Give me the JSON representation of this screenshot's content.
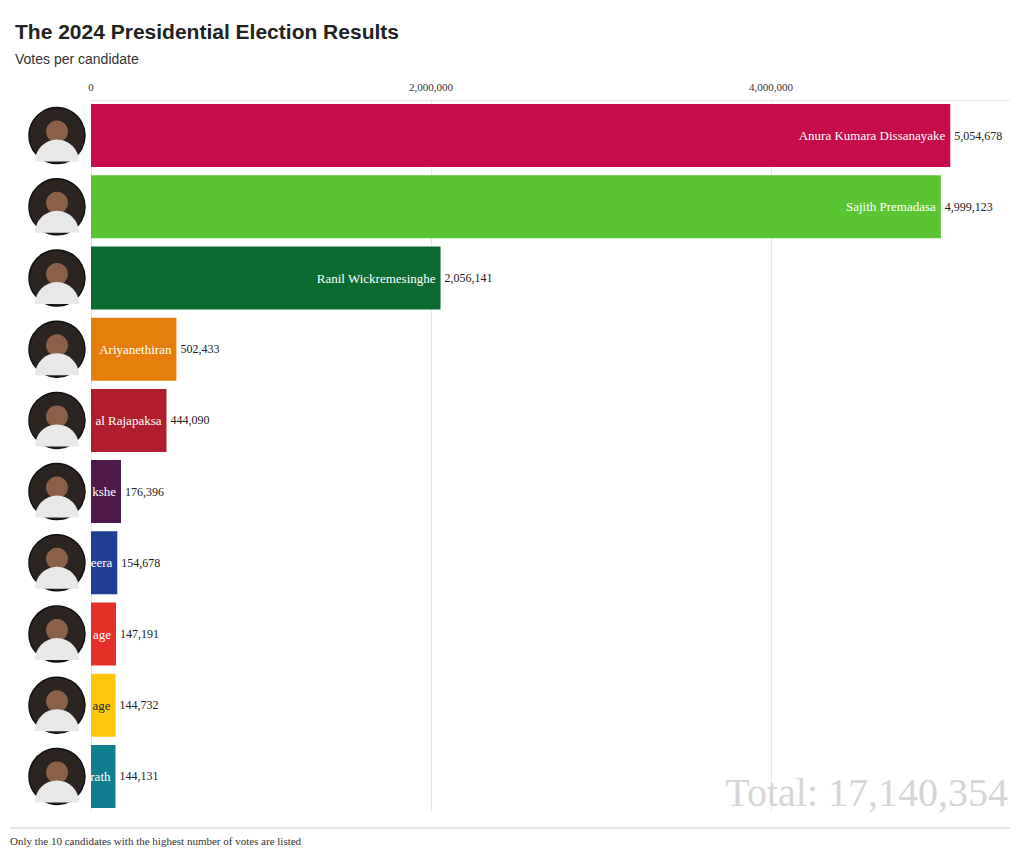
{
  "chart_data": {
    "type": "bar",
    "title": "The 2024 Presidential Election Results",
    "subtitle": "Votes per candidate",
    "orientation": "horizontal",
    "categories": [
      "Anura Kumara Dissanayake",
      "Sajith Premadasa",
      "Ranil Wickremesinghe",
      "Ariyanethiran",
      "al Rajapaksa",
      "kshe",
      "eera",
      "age",
      "age",
      "rath"
    ],
    "values": [
      5054678,
      4999123,
      2056141,
      502433,
      444090,
      176396,
      154678,
      147191,
      144732,
      144131
    ],
    "value_labels": [
      "5,054,678",
      "4,999,123",
      "2,056,141",
      "502,433",
      "444,090",
      "176,396",
      "154,678",
      "147,191",
      "144,732",
      "144,131"
    ],
    "colors": [
      "#c70c4b",
      "#5bc432",
      "#0b6b30",
      "#e57e0c",
      "#b01e2e",
      "#4d1a4b",
      "#1f3f94",
      "#e5302a",
      "#fcc70c",
      "#117e8f"
    ],
    "xlim": [
      0,
      5400000
    ],
    "xticks": [
      0,
      {
        "value": 2000000,
        "label": "2,000,000"
      },
      {
        "value": 4000000,
        "label": "4,000,000"
      }
    ],
    "grid": true,
    "data_labels": true,
    "tick_labels": "x",
    "annotations": [
      "Total: 17,140,354"
    ],
    "footnote": "Only the 10 candidates with the highest number of votes are listed"
  }
}
